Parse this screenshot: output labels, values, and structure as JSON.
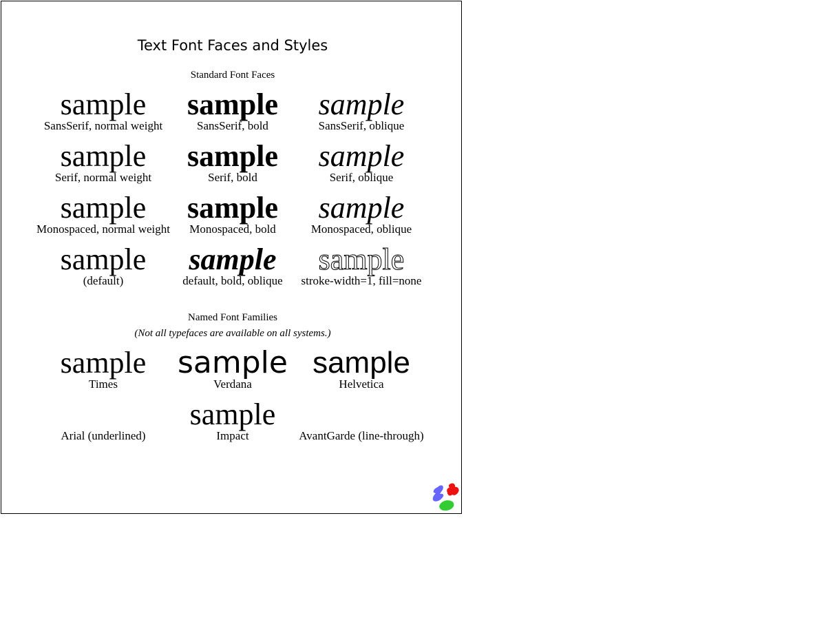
{
  "title": "Text Font Faces and Styles",
  "standard_section": {
    "heading": "Standard Font Faces",
    "sample_text": "sample",
    "rows": [
      [
        "SansSerif, normal weight",
        "SansSerif, bold",
        "SansSerif, oblique"
      ],
      [
        "Serif, normal weight",
        "Serif, bold",
        "Serif, oblique"
      ],
      [
        "Monospaced, normal weight",
        "Monospaced, bold",
        "Monospaced, oblique"
      ],
      [
        "(default)",
        "default, bold, oblique",
        "stroke-width=1, fill=none"
      ]
    ]
  },
  "named_section": {
    "heading": "Named Font Families",
    "note": "(Not all typefaces are available on all systems.)",
    "rows": [
      [
        "Times",
        "Verdana",
        "Helvetica"
      ],
      [
        "Arial (underlined)",
        "Impact",
        "AvantGarde (line-through)"
      ]
    ]
  },
  "logo": {
    "name": "batik-logo",
    "colors": [
      "#6666ff",
      "#ff0000",
      "#33cc33"
    ]
  }
}
